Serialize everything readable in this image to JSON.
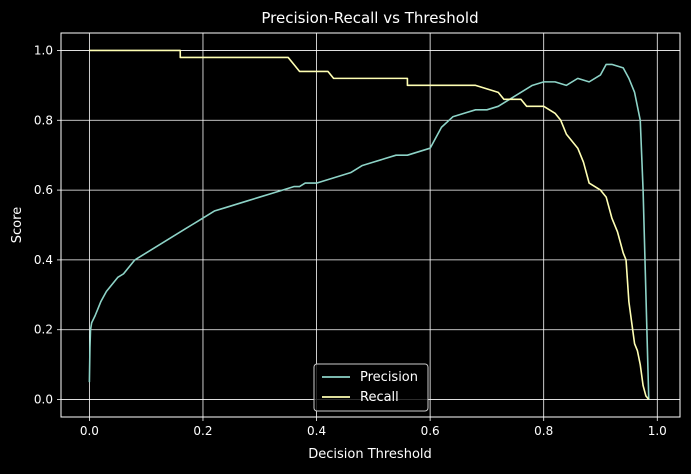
{
  "chart_data": {
    "type": "line",
    "title": "Precision-Recall vs Threshold",
    "xlabel": "Decision Threshold",
    "ylabel": "Score",
    "xlim": [
      -0.05,
      1.04
    ],
    "ylim": [
      -0.05,
      1.05
    ],
    "xticks": [
      0.0,
      0.2,
      0.4,
      0.6,
      0.8,
      1.0
    ],
    "xtick_labels": [
      "0.0",
      "0.2",
      "0.4",
      "0.6",
      "0.8",
      "1.0"
    ],
    "yticks": [
      0.0,
      0.2,
      0.4,
      0.6,
      0.8,
      1.0
    ],
    "ytick_labels": [
      "0.0",
      "0.2",
      "0.4",
      "0.6",
      "0.8",
      "1.0"
    ],
    "grid": true,
    "legend_position": "lower center",
    "background": "#000000",
    "foreground": "#ffffff",
    "series": [
      {
        "name": "Precision",
        "color": "#8dd3c7",
        "x": [
          0.0,
          0.001,
          0.002,
          0.004,
          0.01,
          0.015,
          0.02,
          0.03,
          0.04,
          0.05,
          0.06,
          0.07,
          0.08,
          0.09,
          0.1,
          0.11,
          0.12,
          0.13,
          0.14,
          0.15,
          0.16,
          0.17,
          0.18,
          0.19,
          0.2,
          0.22,
          0.24,
          0.26,
          0.28,
          0.3,
          0.32,
          0.34,
          0.36,
          0.37,
          0.38,
          0.4,
          0.42,
          0.44,
          0.46,
          0.48,
          0.5,
          0.52,
          0.54,
          0.56,
          0.58,
          0.6,
          0.62,
          0.64,
          0.66,
          0.68,
          0.7,
          0.72,
          0.74,
          0.76,
          0.78,
          0.8,
          0.82,
          0.84,
          0.86,
          0.88,
          0.9,
          0.91,
          0.92,
          0.94,
          0.95,
          0.96,
          0.97,
          0.975,
          0.98,
          0.985
        ],
        "y": [
          0.05,
          0.15,
          0.2,
          0.22,
          0.24,
          0.26,
          0.28,
          0.31,
          0.33,
          0.35,
          0.36,
          0.38,
          0.4,
          0.41,
          0.42,
          0.43,
          0.44,
          0.45,
          0.46,
          0.47,
          0.48,
          0.49,
          0.5,
          0.51,
          0.52,
          0.54,
          0.55,
          0.56,
          0.57,
          0.58,
          0.59,
          0.6,
          0.61,
          0.61,
          0.62,
          0.62,
          0.63,
          0.64,
          0.65,
          0.67,
          0.68,
          0.69,
          0.7,
          0.7,
          0.71,
          0.72,
          0.78,
          0.81,
          0.82,
          0.83,
          0.83,
          0.84,
          0.86,
          0.88,
          0.9,
          0.91,
          0.91,
          0.9,
          0.92,
          0.91,
          0.93,
          0.96,
          0.96,
          0.95,
          0.92,
          0.88,
          0.8,
          0.6,
          0.3,
          0.0
        ]
      },
      {
        "name": "Recall",
        "color": "#ffffb3",
        "x": [
          0.0,
          0.16,
          0.16,
          0.35,
          0.36,
          0.37,
          0.38,
          0.42,
          0.43,
          0.56,
          0.56,
          0.68,
          0.72,
          0.73,
          0.76,
          0.77,
          0.79,
          0.8,
          0.82,
          0.83,
          0.84,
          0.85,
          0.86,
          0.87,
          0.88,
          0.9,
          0.91,
          0.92,
          0.93,
          0.94,
          0.945,
          0.95,
          0.955,
          0.96,
          0.965,
          0.97,
          0.975,
          0.98,
          0.985
        ],
        "y": [
          1.0,
          1.0,
          0.98,
          0.98,
          0.96,
          0.94,
          0.94,
          0.94,
          0.92,
          0.92,
          0.9,
          0.9,
          0.88,
          0.86,
          0.86,
          0.84,
          0.84,
          0.84,
          0.82,
          0.8,
          0.76,
          0.74,
          0.72,
          0.68,
          0.62,
          0.6,
          0.58,
          0.52,
          0.48,
          0.42,
          0.4,
          0.28,
          0.22,
          0.16,
          0.14,
          0.1,
          0.04,
          0.01,
          0.0
        ]
      }
    ]
  }
}
